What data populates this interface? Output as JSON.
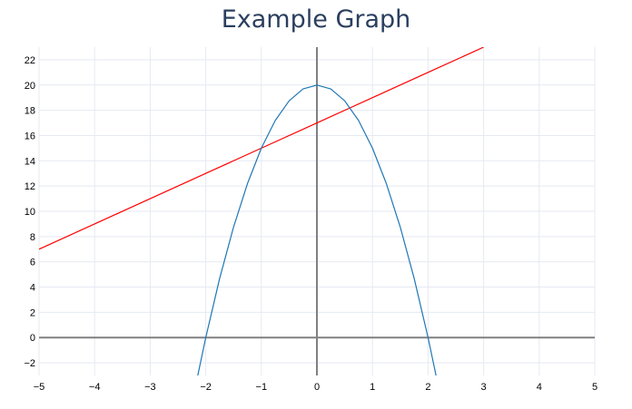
{
  "chart_data": {
    "type": "line",
    "title": "Example Graph",
    "xlabel": "",
    "ylabel": "",
    "xlim": [
      -5,
      5
    ],
    "ylim": [
      -3,
      23
    ],
    "xticks": [
      -5,
      -4,
      -3,
      -2,
      -1,
      0,
      1,
      2,
      3,
      4,
      5
    ],
    "yticks": [
      -2,
      0,
      2,
      4,
      6,
      8,
      10,
      12,
      14,
      16,
      18,
      20,
      22
    ],
    "grid": true,
    "legend": "none",
    "series": [
      {
        "color": "#ff0000",
        "x": [
          -5,
          -4,
          -3,
          -2,
          -1,
          0,
          1,
          2,
          3
        ],
        "y": [
          7,
          9,
          11,
          13,
          15,
          17,
          19,
          21,
          23
        ]
      },
      {
        "color": "#1f77b4",
        "x": [
          -2.18,
          -2,
          -1.75,
          -1.5,
          -1.25,
          -1,
          -0.75,
          -0.5,
          -0.25,
          0,
          0.25,
          0.5,
          0.75,
          1,
          1.25,
          1.5,
          1.75,
          2,
          2.18
        ],
        "y": [
          -3.76,
          0,
          4.69,
          8.75,
          12.19,
          15,
          17.19,
          18.75,
          19.69,
          20,
          19.69,
          18.75,
          17.19,
          15,
          12.19,
          8.75,
          4.69,
          0,
          -3.76
        ]
      }
    ],
    "colors": {
      "grid": "#e5e9f2",
      "axis": "#808080",
      "text": "#000000",
      "title": "#2a3f5f"
    }
  }
}
